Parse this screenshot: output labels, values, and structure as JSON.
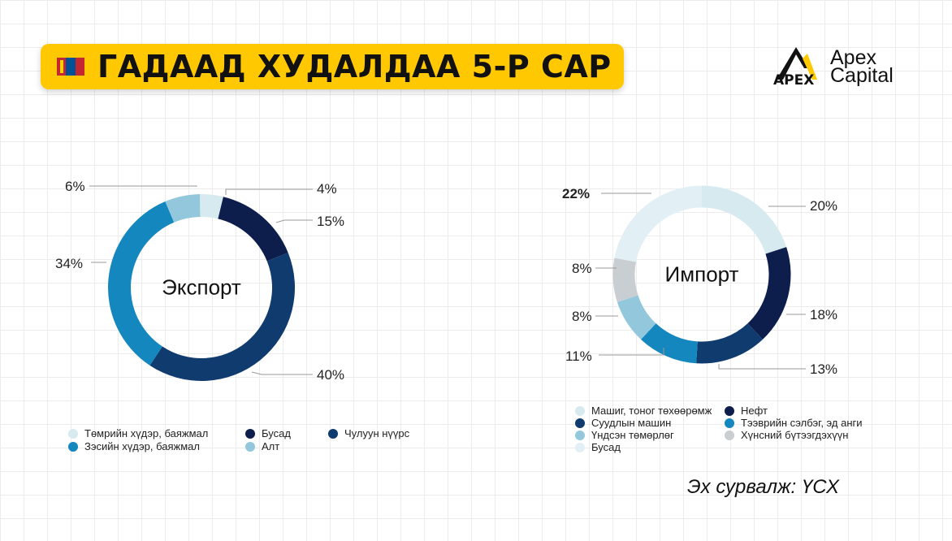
{
  "title": "ГАДААД ХУДАЛДАА 5-Р САР",
  "logo": {
    "brand_mark": "APEX",
    "line1": "Apex",
    "line2": "Capital"
  },
  "source": "Эх сурвалж: ҮСХ",
  "chart_data": [
    {
      "type": "pie",
      "center_label": "Экспорт",
      "categories": [
        "Төмрийн хүдэр, баяжмал",
        "Бусад",
        "Чулуун нүүрс",
        "Зэсийн хүдэр, баяжмал",
        "Алт"
      ],
      "values": [
        4,
        15,
        40,
        34,
        6
      ],
      "labels": [
        "4%",
        "15%",
        "40%",
        "34%",
        "6%"
      ],
      "colors": [
        "#d6eaf0",
        "#0d1e4d",
        "#0f3b6f",
        "#1487bf",
        "#93c8dc"
      ],
      "legend": "bottom",
      "legend_items": [
        {
          "label": "Төмрийн хүдэр, баяжмал",
          "color": "#d6eaf0"
        },
        {
          "label": "Бусад",
          "color": "#0d1e4d"
        },
        {
          "label": "Чулуун нүүрс",
          "color": "#0f3b6f"
        },
        {
          "label": "Зэсийн хүдэр, баяжмал",
          "color": "#1487bf"
        },
        {
          "label": "Алт",
          "color": "#93c8dc"
        }
      ]
    },
    {
      "type": "pie",
      "center_label": "Импорт",
      "categories": [
        "Машиг, тоног төхөөрөмж",
        "Нефт",
        "Суудлын машин",
        "Тээврийн сэлбэг, эд анги",
        "Үндсэн төмөрлөг",
        "Хүнсний бүтээгдэхүүн",
        "Бусад"
      ],
      "values": [
        20,
        18,
        13,
        11,
        8,
        8,
        22
      ],
      "labels": [
        "20%",
        "18%",
        "13%",
        "11%",
        "8%",
        "8%",
        "22%"
      ],
      "colors": [
        "#d6eaf0",
        "#0d1e4d",
        "#0f3b6f",
        "#1487bf",
        "#93c8dc",
        "#c8ced2",
        "#e2eff4"
      ],
      "legend": "bottom",
      "legend_items": [
        {
          "label": "Машиг, тоног төхөөрөмж",
          "color": "#d6eaf0"
        },
        {
          "label": "Нефт",
          "color": "#0d1e4d"
        },
        {
          "label": "Суудлын машин",
          "color": "#0f3b6f"
        },
        {
          "label": "Тээврийн сэлбэг, эд анги",
          "color": "#1487bf"
        },
        {
          "label": "Үндсэн төмөрлөг",
          "color": "#93c8dc"
        },
        {
          "label": "Хүнсний бүтээгдэхүүн",
          "color": "#c8ced2"
        },
        {
          "label": "Бусад",
          "color": "#e2eff4"
        }
      ]
    }
  ]
}
